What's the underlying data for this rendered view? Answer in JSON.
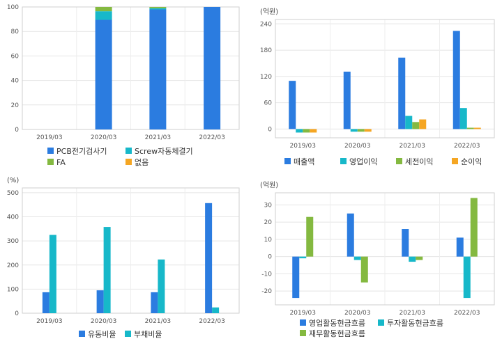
{
  "chart_data": [
    {
      "type": "bar",
      "stacked": true,
      "unit": "",
      "categories": [
        "2019/03",
        "2020/03",
        "2021/03",
        "2022/03"
      ],
      "ylim": [
        0,
        100
      ],
      "yticks": [
        0,
        20,
        40,
        60,
        80,
        100
      ],
      "grid": true,
      "legend_position": "bottom",
      "series": [
        {
          "name": "PCB전기검사기",
          "color": "#2b7ce0",
          "values": [
            null,
            89.5,
            98,
            100
          ]
        },
        {
          "name": "Screw자동체결기",
          "color": "#17b8c9",
          "values": [
            null,
            7,
            1,
            0
          ]
        },
        {
          "name": "FA",
          "color": "#84b940",
          "values": [
            null,
            3.5,
            1,
            0
          ]
        },
        {
          "name": "없음",
          "color": "#f5a623",
          "values": [
            null,
            0,
            0,
            0
          ]
        }
      ]
    },
    {
      "type": "bar",
      "unit": "(억원)",
      "categories": [
        "2019/03",
        "2020/03",
        "2021/03",
        "2022/03"
      ],
      "ylim": [
        -20,
        250
      ],
      "yticks": [
        0,
        60,
        120,
        180,
        240
      ],
      "grid": true,
      "legend_position": "bottom",
      "series": [
        {
          "name": "매출액",
          "color": "#2b7ce0",
          "values": [
            110,
            131,
            163,
            224
          ]
        },
        {
          "name": "영업이익",
          "color": "#17b8c9",
          "values": [
            -8,
            -6,
            30,
            48
          ]
        },
        {
          "name": "세전이익",
          "color": "#84b940",
          "values": [
            -8,
            -6,
            16,
            3
          ]
        },
        {
          "name": "순이익",
          "color": "#f5a623",
          "values": [
            -8,
            -6,
            22,
            3
          ]
        }
      ]
    },
    {
      "type": "bar",
      "unit": "(%)",
      "categories": [
        "2019/03",
        "2020/03",
        "2021/03",
        "2022/03"
      ],
      "ylim": [
        0,
        520
      ],
      "yticks": [
        0,
        100,
        200,
        300,
        400,
        500
      ],
      "grid": true,
      "legend_position": "bottom",
      "series": [
        {
          "name": "유동비율",
          "color": "#2b7ce0",
          "values": [
            87,
            95,
            87,
            457
          ]
        },
        {
          "name": "부채비율",
          "color": "#17b8c9",
          "values": [
            325,
            358,
            223,
            24
          ]
        }
      ]
    },
    {
      "type": "bar",
      "unit": "(억원)",
      "categories": [
        "2019/03",
        "2020/03",
        "2021/03",
        "2022/03"
      ],
      "ylim": [
        -28,
        37
      ],
      "yticks": [
        -20,
        -10,
        0,
        10,
        20,
        30
      ],
      "grid": true,
      "legend_position": "bottom",
      "series": [
        {
          "name": "영업활동현금흐름",
          "color": "#2b7ce0",
          "values": [
            -24,
            25,
            16,
            11
          ]
        },
        {
          "name": "투자활동현금흐름",
          "color": "#17b8c9",
          "values": [
            -1,
            -2,
            -3,
            -24
          ]
        },
        {
          "name": "재무활동현금흐름",
          "color": "#84b940",
          "values": [
            23,
            -15,
            -2,
            34
          ]
        }
      ]
    }
  ]
}
